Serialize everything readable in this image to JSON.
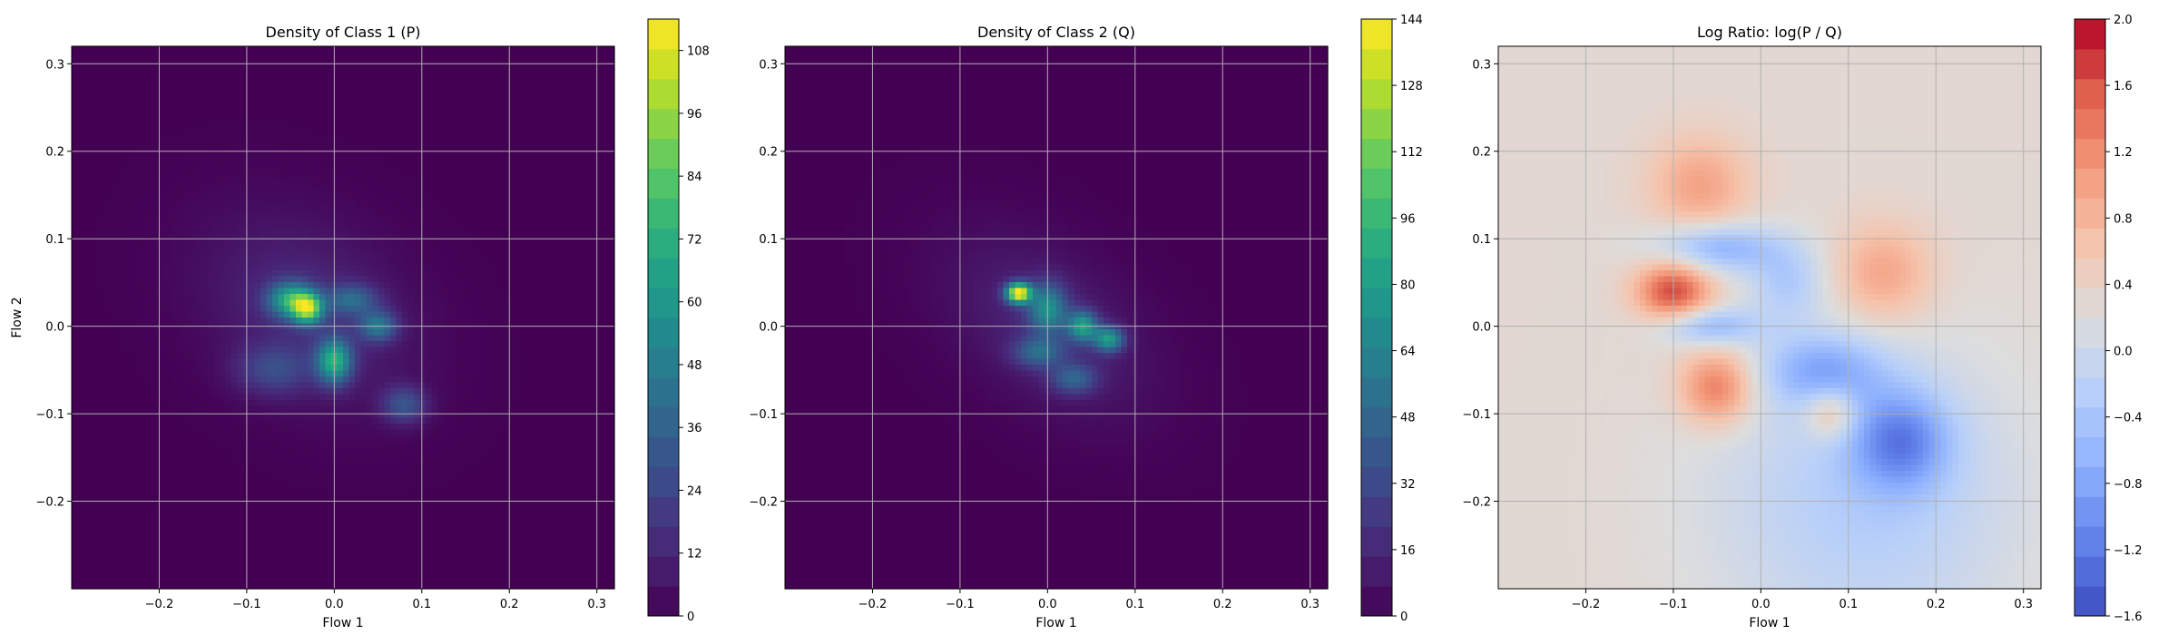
{
  "chart_data": [
    {
      "type": "heatmap",
      "title": "Density of Class 1 (P)",
      "xlabel": "Flow 1",
      "ylabel": "Flow 2",
      "xlim": [
        -0.3,
        0.32
      ],
      "ylim": [
        -0.3,
        0.32
      ],
      "xticks": [
        "−0.2",
        "−0.1",
        "0.0",
        "0.1",
        "0.2",
        "0.3"
      ],
      "yticks": [
        "−0.2",
        "−0.1",
        "0.0",
        "0.1",
        "0.2",
        "0.3"
      ],
      "xtick_values": [
        -0.2,
        -0.1,
        0.0,
        0.1,
        0.2,
        0.3
      ],
      "ytick_values": [
        -0.2,
        -0.1,
        0.0,
        0.1,
        0.2,
        0.3
      ],
      "grid": true,
      "colormap": "viridis",
      "colorbar": {
        "min": 0,
        "max": 114,
        "ticks": [
          0,
          12,
          24,
          36,
          48,
          60,
          72,
          84,
          96,
          108
        ]
      },
      "blobs": [
        {
          "x": -0.03,
          "y": 0.02,
          "sx": 0.09,
          "sy": 0.065,
          "rot": -35,
          "w": 14
        },
        {
          "x": -0.05,
          "y": 0.03,
          "sx": 0.018,
          "sy": 0.014,
          "rot": 0,
          "w": 60
        },
        {
          "x": -0.03,
          "y": 0.02,
          "sx": 0.012,
          "sy": 0.012,
          "rot": 0,
          "w": 78
        },
        {
          "x": 0.0,
          "y": -0.04,
          "sx": 0.014,
          "sy": 0.018,
          "rot": 0,
          "w": 65
        },
        {
          "x": 0.05,
          "y": 0.0,
          "sx": 0.015,
          "sy": 0.012,
          "rot": 0,
          "w": 40
        },
        {
          "x": 0.02,
          "y": 0.03,
          "sx": 0.02,
          "sy": 0.012,
          "rot": 0,
          "w": 32
        },
        {
          "x": 0.08,
          "y": -0.09,
          "sx": 0.018,
          "sy": 0.015,
          "rot": 0,
          "w": 28
        },
        {
          "x": -0.07,
          "y": -0.05,
          "sx": 0.03,
          "sy": 0.02,
          "rot": 0,
          "w": 22
        }
      ]
    },
    {
      "type": "heatmap",
      "title": "Density of Class 2 (Q)",
      "xlabel": "Flow 1",
      "ylabel": "",
      "xlim": [
        -0.3,
        0.32
      ],
      "ylim": [
        -0.3,
        0.32
      ],
      "xticks": [
        "−0.2",
        "−0.1",
        "0.0",
        "0.1",
        "0.2",
        "0.3"
      ],
      "yticks": [
        "−0.2",
        "−0.1",
        "0.0",
        "0.1",
        "0.2",
        "0.3"
      ],
      "xtick_values": [
        -0.2,
        -0.1,
        0.0,
        0.1,
        0.2,
        0.3
      ],
      "ytick_values": [
        -0.2,
        -0.1,
        0.0,
        0.1,
        0.2,
        0.3
      ],
      "grid": true,
      "colormap": "viridis",
      "colorbar": {
        "min": 0,
        "max": 144,
        "ticks": [
          0,
          16,
          32,
          48,
          64,
          80,
          96,
          112,
          128,
          144
        ]
      },
      "blobs": [
        {
          "x": 0.0,
          "y": 0.0,
          "sx": 0.09,
          "sy": 0.055,
          "rot": -38,
          "w": 16
        },
        {
          "x": -0.033,
          "y": 0.038,
          "sx": 0.01,
          "sy": 0.008,
          "rot": 0,
          "w": 138
        },
        {
          "x": 0.0,
          "y": 0.02,
          "sx": 0.015,
          "sy": 0.02,
          "rot": 0,
          "w": 60
        },
        {
          "x": 0.04,
          "y": 0.0,
          "sx": 0.012,
          "sy": 0.012,
          "rot": 0,
          "w": 72
        },
        {
          "x": 0.07,
          "y": -0.015,
          "sx": 0.012,
          "sy": 0.01,
          "rot": 0,
          "w": 70
        },
        {
          "x": -0.01,
          "y": -0.03,
          "sx": 0.02,
          "sy": 0.012,
          "rot": 0,
          "w": 40
        },
        {
          "x": 0.03,
          "y": -0.06,
          "sx": 0.018,
          "sy": 0.012,
          "rot": 0,
          "w": 38
        }
      ]
    },
    {
      "type": "heatmap",
      "title": "Log Ratio: log(P / Q)",
      "xlabel": "Flow 1",
      "ylabel": "",
      "xlim": [
        -0.3,
        0.32
      ],
      "ylim": [
        -0.3,
        0.32
      ],
      "xticks": [
        "−0.2",
        "−0.1",
        "0.0",
        "0.1",
        "0.2",
        "0.3"
      ],
      "yticks": [
        "−0.2",
        "−0.1",
        "0.0",
        "0.1",
        "0.2",
        "0.3"
      ],
      "xtick_values": [
        -0.2,
        -0.1,
        0.0,
        0.1,
        0.2,
        0.3
      ],
      "ytick_values": [
        -0.2,
        -0.1,
        0.0,
        0.1,
        0.2,
        0.3
      ],
      "grid": true,
      "colormap": "coolwarm",
      "colorbar": {
        "min": -1.6,
        "max": 2.0,
        "ticks": [
          -1.6,
          -1.2,
          -0.8,
          -0.4,
          0.0,
          0.4,
          0.8,
          1.2,
          1.6,
          2.0
        ],
        "tick_labels": [
          "−1.6",
          "−1.2",
          "−0.8",
          "−0.4",
          "0.0",
          "0.4",
          "0.8",
          "1.2",
          "1.6",
          "2.0"
        ]
      },
      "base_value": 0.3,
      "blobs": [
        {
          "x": -0.1,
          "y": 0.04,
          "sx": 0.03,
          "sy": 0.025,
          "rot": 0,
          "w": 1.4
        },
        {
          "x": -0.05,
          "y": -0.07,
          "sx": 0.03,
          "sy": 0.03,
          "rot": 0,
          "w": 1.1
        },
        {
          "x": -0.07,
          "y": 0.16,
          "sx": 0.04,
          "sy": 0.04,
          "rot": 0,
          "w": 0.7
        },
        {
          "x": 0.14,
          "y": 0.06,
          "sx": 0.04,
          "sy": 0.04,
          "rot": 0,
          "w": 0.7
        },
        {
          "x": 0.08,
          "y": -0.1,
          "sx": 0.02,
          "sy": 0.02,
          "rot": 0,
          "w": 0.8
        },
        {
          "x": -0.05,
          "y": 0.09,
          "sx": 0.05,
          "sy": 0.02,
          "rot": 0,
          "w": -1.0
        },
        {
          "x": -0.06,
          "y": 0.0,
          "sx": 0.04,
          "sy": 0.015,
          "rot": 0,
          "w": -0.9
        },
        {
          "x": 0.07,
          "y": -0.05,
          "sx": 0.05,
          "sy": 0.03,
          "rot": 0,
          "w": -0.9
        },
        {
          "x": 0.16,
          "y": -0.13,
          "sx": 0.04,
          "sy": 0.04,
          "rot": 0,
          "w": -1.1
        },
        {
          "x": 0.12,
          "y": -0.2,
          "sx": 0.12,
          "sy": 0.12,
          "rot": 0,
          "w": -0.6
        },
        {
          "x": 0.03,
          "y": 0.05,
          "sx": 0.03,
          "sy": 0.03,
          "rot": 0,
          "w": -0.6
        }
      ]
    }
  ]
}
